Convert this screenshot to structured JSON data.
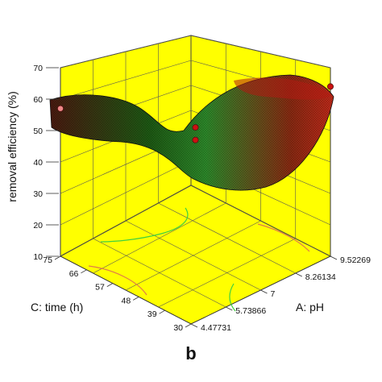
{
  "chart_data": {
    "type": "surface3d",
    "panel_label": "b",
    "z_axis": {
      "label": "removal efficiency (%)",
      "ticks": [
        "10",
        "20",
        "30",
        "40",
        "50",
        "60",
        "70"
      ],
      "range": [
        10,
        70
      ]
    },
    "a_axis": {
      "label": "A: pH",
      "ticks": [
        "4.47731",
        "5.73866",
        "7",
        "8.26134",
        "9.52269"
      ],
      "range": [
        4.47731,
        9.52269
      ]
    },
    "c_axis": {
      "label": "C: time (h)",
      "ticks": [
        "30",
        "39",
        "48",
        "57",
        "66",
        "75"
      ],
      "range": [
        30,
        75
      ]
    },
    "surface": {
      "description_points": [
        {
          "pH": 9.52269,
          "time": 75,
          "removal": 57
        },
        {
          "pH": 9.52269,
          "time": 30,
          "removal": 62
        },
        {
          "pH": 4.47731,
          "time": 30,
          "removal": 36
        },
        {
          "pH": 4.47731,
          "time": 75,
          "removal": 43
        },
        {
          "pH": 7,
          "time": 52.5,
          "removal": 48
        }
      ]
    },
    "design_points": [
      {
        "pH": 9.52269,
        "time": 30,
        "removal": 64,
        "color": "#cc1111"
      },
      {
        "pH": 4.47731,
        "time": 75,
        "removal": 57,
        "color": "#ee8888"
      },
      {
        "pH": 7,
        "time": 52.5,
        "removal": 51,
        "color": "#cc1111"
      },
      {
        "pH": 7,
        "time": 52.5,
        "removal": 47,
        "color": "#cc1111"
      }
    ],
    "colors": {
      "wall": "#ffff00",
      "surface_high": "#c41a1a",
      "surface_mid": "#1a7a1a",
      "surface_low": "#2fbf2f",
      "contour": "#3fd13f",
      "contour_alt": "#e07b4a"
    }
  }
}
